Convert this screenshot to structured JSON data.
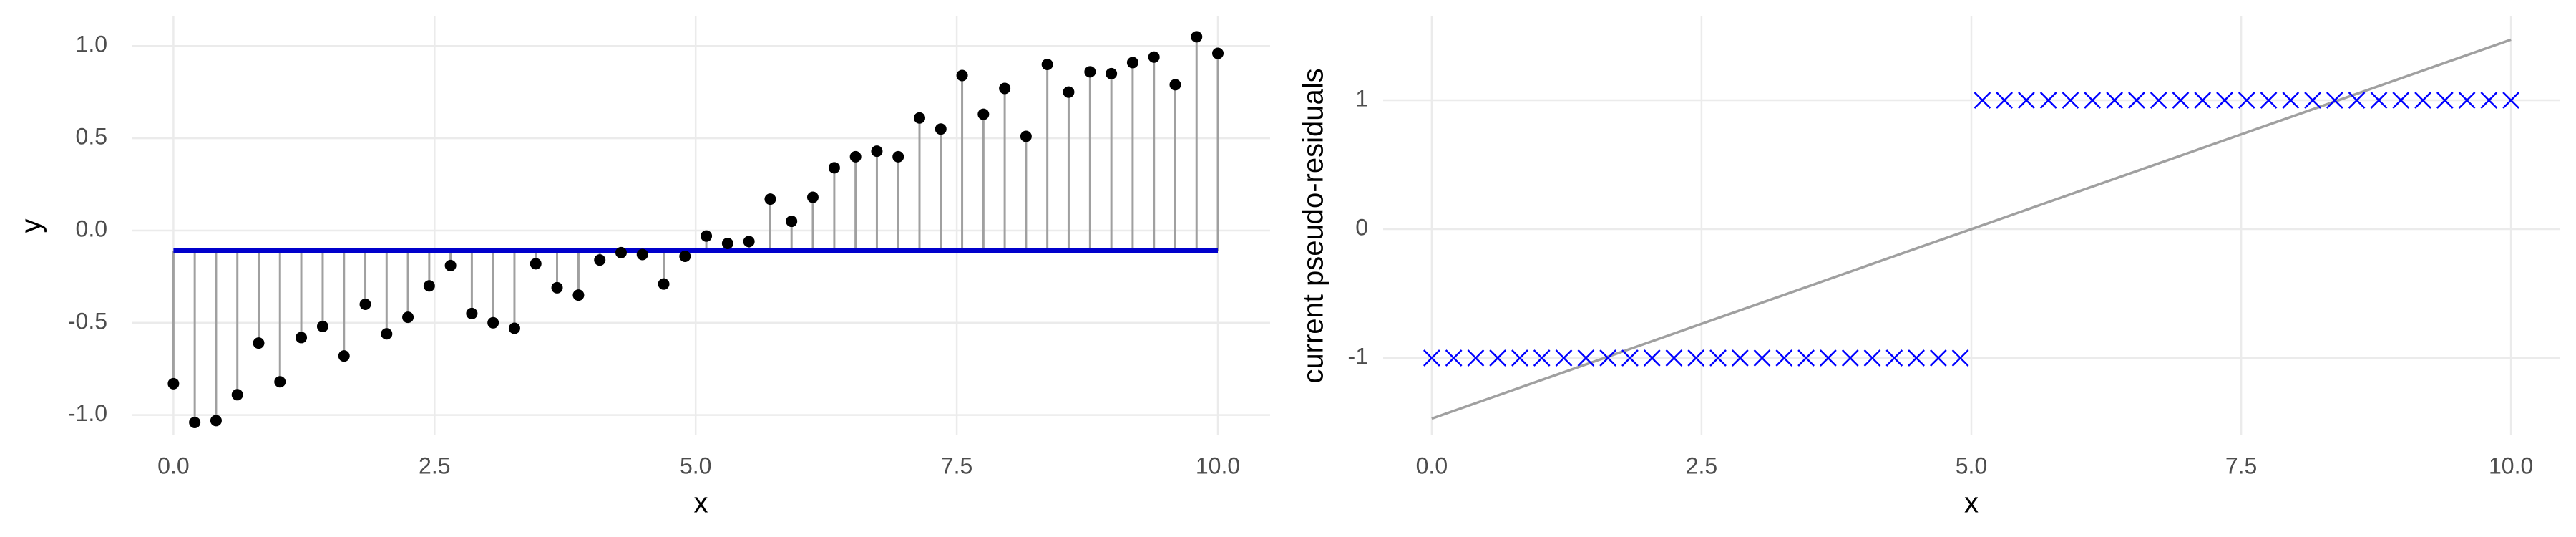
{
  "chart_data": [
    {
      "type": "stem",
      "x_label": "x",
      "y_label": "y",
      "x": [
        0,
        0.204,
        0.408,
        0.612,
        0.816,
        1.02,
        1.224,
        1.429,
        1.633,
        1.837,
        2.041,
        2.245,
        2.449,
        2.653,
        2.857,
        3.061,
        3.265,
        3.469,
        3.673,
        3.878,
        4.082,
        4.286,
        4.49,
        4.694,
        4.898,
        5.102,
        5.306,
        5.51,
        5.714,
        5.918,
        6.122,
        6.327,
        6.531,
        6.735,
        6.939,
        7.143,
        7.347,
        7.551,
        7.755,
        7.959,
        8.163,
        8.367,
        8.571,
        8.776,
        8.98,
        9.184,
        9.388,
        9.592,
        9.796,
        10
      ],
      "values": [
        -0.83,
        -1.04,
        -1.03,
        -0.89,
        -0.61,
        -0.82,
        -0.58,
        -0.52,
        -0.68,
        -0.4,
        -0.56,
        -0.47,
        -0.3,
        -0.19,
        -0.45,
        -0.5,
        -0.53,
        -0.18,
        -0.31,
        -0.35,
        -0.16,
        -0.12,
        -0.13,
        -0.29,
        -0.14,
        -0.03,
        -0.07,
        -0.06,
        0.17,
        0.05,
        0.18,
        0.34,
        0.4,
        0.43,
        0.4,
        0.61,
        0.55,
        0.84,
        0.63,
        0.77,
        0.51,
        0.9,
        0.75,
        0.86,
        0.85,
        0.91,
        0.94,
        0.79,
        1.05,
        0.96
      ],
      "color": "#000000",
      "stem_color": "#a0a0a0",
      "baseline": -0.11,
      "baseline_color": "#0000cc",
      "xlim": [
        -0.4,
        10.5
      ],
      "xticks": [
        {
          "value": 0,
          "label": "0.0"
        },
        2.5,
        {
          "value": 5,
          "label": "5.0"
        },
        7.5,
        {
          "value": 10,
          "label": "10.0"
        }
      ],
      "ylim": [
        -1.11,
        1.16
      ],
      "yticks": [
        {
          "value": -1,
          "label": "-1.0"
        },
        -0.5,
        {
          "value": 0,
          "label": "0.0"
        },
        0.5,
        {
          "value": 1,
          "label": "1.0"
        }
      ],
      "grid": true
    },
    {
      "type": "scatter",
      "x_label": "x",
      "y_label": "current pseudo-residuals",
      "marker": "x",
      "color": "#0000ff",
      "x": [
        0,
        0.204,
        0.408,
        0.612,
        0.816,
        1.02,
        1.224,
        1.429,
        1.633,
        1.837,
        2.041,
        2.245,
        2.449,
        2.653,
        2.857,
        3.061,
        3.265,
        3.469,
        3.673,
        3.878,
        4.082,
        4.286,
        4.49,
        4.694,
        4.898,
        5.102,
        5.306,
        5.51,
        5.714,
        5.918,
        6.122,
        6.327,
        6.531,
        6.735,
        6.939,
        7.143,
        7.347,
        7.551,
        7.755,
        7.959,
        8.163,
        8.367,
        8.571,
        8.776,
        8.98,
        9.184,
        9.388,
        9.592,
        9.796,
        10
      ],
      "values": [
        -1,
        -1,
        -1,
        -1,
        -1,
        -1,
        -1,
        -1,
        -1,
        -1,
        -1,
        -1,
        -1,
        -1,
        -1,
        -1,
        -1,
        -1,
        -1,
        -1,
        -1,
        -1,
        -1,
        -1,
        -1,
        1,
        1,
        1,
        1,
        1,
        1,
        1,
        1,
        1,
        1,
        1,
        1,
        1,
        1,
        1,
        1,
        1,
        1,
        1,
        1,
        1,
        1,
        1,
        1,
        1
      ],
      "line": {
        "x": [
          0,
          10
        ],
        "values": [
          -1.47,
          1.47
        ],
        "color": "#a0a0a0"
      },
      "xlim": [
        -0.45,
        10.45
      ],
      "xticks": [
        {
          "value": 0,
          "label": "0.0"
        },
        2.5,
        {
          "value": 5,
          "label": "5.0"
        },
        7.5,
        {
          "value": 10,
          "label": "10.0"
        }
      ],
      "ylim": [
        -1.6,
        1.65
      ],
      "yticks": [
        -1,
        0,
        1
      ],
      "grid": true
    }
  ]
}
